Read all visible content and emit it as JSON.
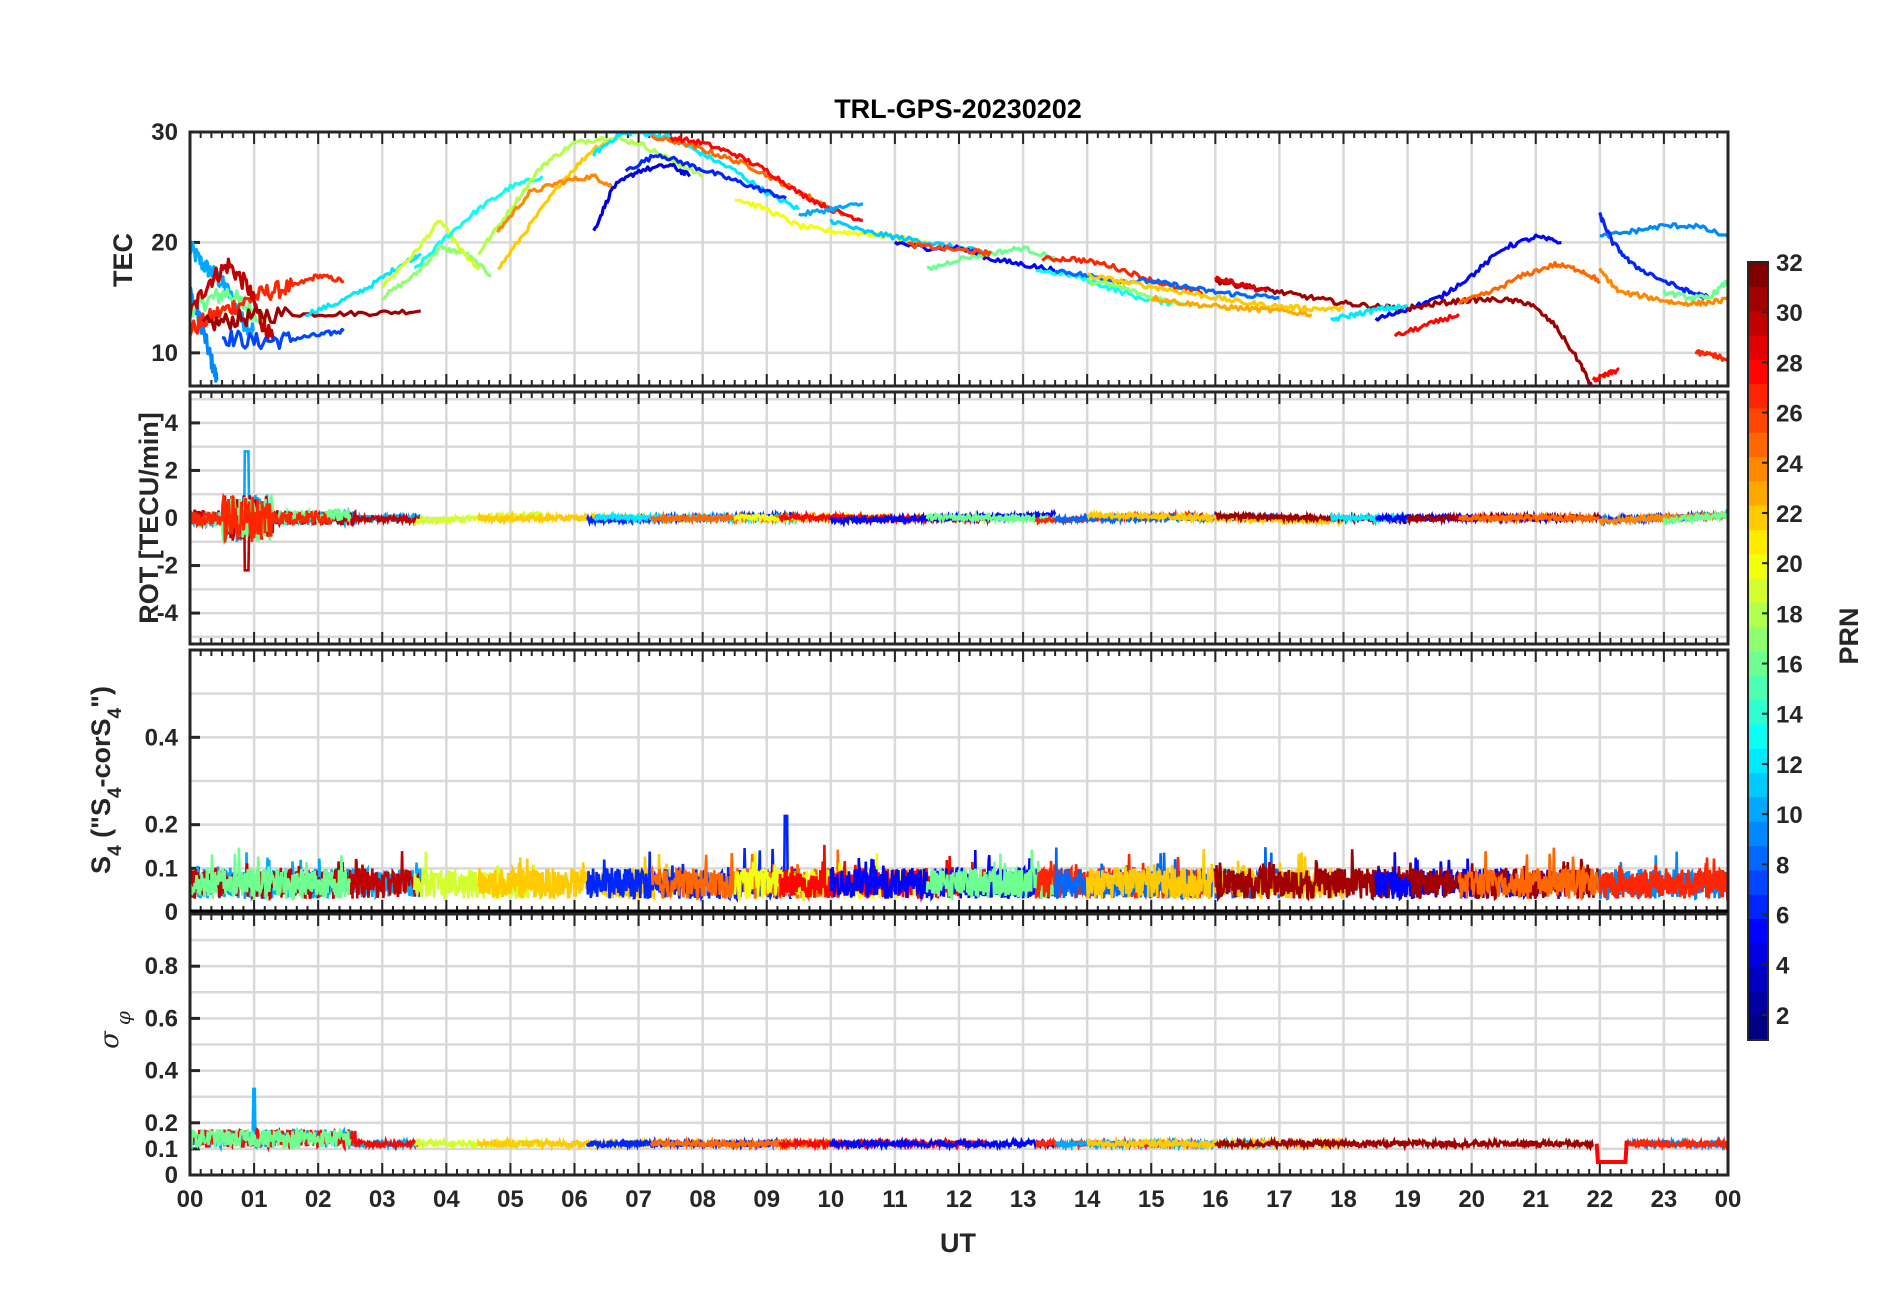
{
  "figure": {
    "title": "TRL-GPS-20230202",
    "xlabel": "UT",
    "colorbar_label": "PRN"
  },
  "chart_data": [
    {
      "id": "tec",
      "type": "line",
      "title": "TRL-GPS-20230202",
      "ylabel": "TEC",
      "xlim": [
        0,
        24
      ],
      "ylim": [
        7,
        30
      ],
      "yticks": [
        "10",
        "20",
        "30"
      ],
      "ytick_values": [
        10,
        20,
        30
      ],
      "grid": true,
      "series": [
        {
          "prn": 10,
          "x": [
            0,
            0.2,
            0.4,
            0.6,
            0.8,
            1.0
          ],
          "y": [
            19.5,
            18.0,
            17.0,
            15.5,
            13.0,
            12.0
          ]
        },
        {
          "prn": 9,
          "x": [
            0,
            0.15,
            0.3,
            0.42
          ],
          "y": [
            15.5,
            13.0,
            10.0,
            7.5
          ]
        },
        {
          "prn": 16,
          "x": [
            0,
            0.3,
            0.6,
            0.9,
            1.2
          ],
          "y": [
            14.0,
            14.8,
            15.5,
            14.0,
            13.0
          ]
        },
        {
          "prn": 27,
          "x": [
            0,
            0.4,
            0.8,
            1.2,
            1.6,
            2.0,
            2.4
          ],
          "y": [
            12.0,
            13.5,
            14.5,
            15.5,
            16.0,
            17.0,
            16.5
          ]
        },
        {
          "prn": 30,
          "x": [
            0,
            0.3,
            0.6,
            0.9,
            1.1,
            1.3
          ],
          "y": [
            13.5,
            16.5,
            18.0,
            16.0,
            13.0,
            11.0
          ]
        },
        {
          "prn": 31,
          "x": [
            0.2,
            0.7,
            1.2,
            2.0,
            2.8,
            3.6
          ],
          "y": [
            12.5,
            13.0,
            13.5,
            13.5,
            13.6,
            13.8
          ]
        },
        {
          "prn": 7,
          "x": [
            0.5,
            1.0,
            1.5,
            2.0,
            2.4
          ],
          "y": [
            11.5,
            11.0,
            11.2,
            11.6,
            12.0
          ]
        },
        {
          "prn": 12,
          "x": [
            1.8,
            2.3,
            2.8,
            3.3,
            3.6
          ],
          "y": [
            13.5,
            14.5,
            16.0,
            18.0,
            19.0
          ]
        },
        {
          "prn": 17,
          "x": [
            3.0,
            3.5,
            3.9,
            4.3,
            4.7
          ],
          "y": [
            15.0,
            17.0,
            19.5,
            19.0,
            17.0
          ]
        },
        {
          "prn": 19,
          "x": [
            3.0,
            3.5,
            3.9,
            4.2,
            4.5
          ],
          "y": [
            16.0,
            19.0,
            22.0,
            19.5,
            17.5
          ]
        },
        {
          "prn": 13,
          "x": [
            3.5,
            4.0,
            4.5,
            5.0,
            5.5
          ],
          "y": [
            17.5,
            20.5,
            23.0,
            25.0,
            26.0
          ]
        },
        {
          "prn": 22,
          "x": [
            4.8,
            5.3,
            5.8,
            6.3,
            6.8
          ],
          "y": [
            17.5,
            21.5,
            25.5,
            28.5,
            30.0
          ]
        },
        {
          "prn": 18,
          "x": [
            4.5,
            5.0,
            5.5,
            6.0,
            6.5,
            7.0,
            7.5,
            8.0
          ],
          "y": [
            19.0,
            23.0,
            27.0,
            29.0,
            29.5,
            29.0,
            27.5,
            26.0
          ]
        },
        {
          "prn": 24,
          "x": [
            4.8,
            5.3,
            5.8,
            6.3,
            6.6
          ],
          "y": [
            21.0,
            24.5,
            25.5,
            26.0,
            25.0
          ]
        },
        {
          "prn": 4,
          "x": [
            6.3,
            6.6,
            7.0,
            7.5,
            7.8
          ],
          "y": [
            21.0,
            25.0,
            26.5,
            27.0,
            26.0
          ]
        },
        {
          "prn": 12,
          "x": [
            6.3,
            6.7,
            7.0,
            7.5,
            8.0,
            8.5,
            9.0,
            9.5
          ],
          "y": [
            28.0,
            29.8,
            30.0,
            29.5,
            28.0,
            26.5,
            24.5,
            23.0
          ]
        },
        {
          "prn": 6,
          "x": [
            6.8,
            7.3,
            7.8,
            8.3,
            8.8,
            9.3
          ],
          "y": [
            26.5,
            28.0,
            27.0,
            26.0,
            25.0,
            24.0
          ]
        },
        {
          "prn": 25,
          "x": [
            7.2,
            7.7,
            8.2,
            8.7,
            9.2,
            9.7,
            10.2
          ],
          "y": [
            29.5,
            29.0,
            28.0,
            27.0,
            25.5,
            24.0,
            22.5
          ]
        },
        {
          "prn": 28,
          "x": [
            7.5,
            8.0,
            8.5,
            9.0,
            9.5,
            10.0,
            10.5
          ],
          "y": [
            29.5,
            29.0,
            28.0,
            26.5,
            24.5,
            23.0,
            22.0
          ]
        },
        {
          "prn": 20,
          "x": [
            8.5,
            9.0,
            9.5,
            10.0,
            10.5,
            11.0,
            11.5
          ],
          "y": [
            24.0,
            23.0,
            21.5,
            21.0,
            20.8,
            20.5,
            20.0
          ]
        },
        {
          "prn": 10,
          "x": [
            9.5,
            10.0,
            10.5
          ],
          "y": [
            22.5,
            23.0,
            23.5
          ]
        },
        {
          "prn": 11,
          "x": [
            10.0,
            10.5,
            11.0,
            11.5,
            12.0,
            12.5
          ],
          "y": [
            22.0,
            21.0,
            20.5,
            20.0,
            19.5,
            19.0
          ]
        },
        {
          "prn": 5,
          "x": [
            11.0,
            11.5,
            12.0,
            12.5,
            13.0,
            13.5
          ],
          "y": [
            20.0,
            19.5,
            19.5,
            18.5,
            18.0,
            17.5
          ]
        },
        {
          "prn": 16,
          "x": [
            11.5,
            12.0,
            12.5,
            13.0,
            13.5
          ],
          "y": [
            17.5,
            18.5,
            19.0,
            19.5,
            18.5
          ]
        },
        {
          "prn": 26,
          "x": [
            11.2,
            11.7,
            12.2,
            12.5
          ],
          "y": [
            19.8,
            19.5,
            19.2,
            19.0
          ]
        },
        {
          "prn": 27,
          "x": [
            13.3,
            13.8,
            14.3,
            14.8,
            15.3,
            15.8
          ],
          "y": [
            18.5,
            18.5,
            18.0,
            17.0,
            16.0,
            15.5
          ]
        },
        {
          "prn": 13,
          "x": [
            13.2,
            13.8,
            14.3,
            14.8,
            15.3
          ],
          "y": [
            17.5,
            17.0,
            16.0,
            15.0,
            14.5
          ]
        },
        {
          "prn": 8,
          "x": [
            13.5,
            14.0,
            14.5,
            15.0,
            15.5,
            16.0,
            16.5,
            17.0
          ],
          "y": [
            17.5,
            17.0,
            16.5,
            16.5,
            16.0,
            15.5,
            15.2,
            15.0
          ]
        },
        {
          "prn": 22,
          "x": [
            14.0,
            14.5,
            15.0,
            15.5,
            16.0,
            16.5,
            17.0,
            17.5,
            18.0
          ],
          "y": [
            17.0,
            16.5,
            16.0,
            15.5,
            15.0,
            14.5,
            14.2,
            14.0,
            14.0
          ]
        },
        {
          "prn": 17,
          "x": [
            14.0,
            14.5,
            15.0,
            15.5
          ],
          "y": [
            16.5,
            16.0,
            15.0,
            14.5
          ]
        },
        {
          "prn": 23,
          "x": [
            15.0,
            15.5,
            16.0,
            16.5,
            17.0,
            17.5
          ],
          "y": [
            15.0,
            14.5,
            14.2,
            14.0,
            13.8,
            13.5
          ]
        },
        {
          "prn": 31,
          "x": [
            16.0,
            16.5,
            17.0,
            17.5,
            18.0,
            18.5,
            19.0
          ],
          "y": [
            16.5,
            16.0,
            15.5,
            15.0,
            14.5,
            14.2,
            14.0
          ]
        },
        {
          "prn": 29,
          "x": [
            16.0,
            16.4,
            16.8
          ],
          "y": [
            16.8,
            16.2,
            15.5
          ]
        },
        {
          "prn": 12,
          "x": [
            17.8,
            18.2,
            18.6,
            19.0
          ],
          "y": [
            13.0,
            13.5,
            14.0,
            14.2
          ]
        },
        {
          "prn": 5,
          "x": [
            18.5,
            19.0,
            19.5,
            20.0,
            20.5,
            21.0,
            21.4
          ],
          "y": [
            13.0,
            14.0,
            15.0,
            17.0,
            19.5,
            20.5,
            20.0
          ]
        },
        {
          "prn": 31,
          "x": [
            19.0,
            19.5,
            20.0,
            20.5,
            20.9,
            21.3,
            21.7,
            21.9
          ],
          "y": [
            14.0,
            14.5,
            14.8,
            14.8,
            14.5,
            12.5,
            9.0,
            6.5
          ]
        },
        {
          "prn": 28,
          "x": [
            18.8,
            19.3,
            19.8
          ],
          "y": [
            11.5,
            12.5,
            13.5
          ]
        },
        {
          "prn": 25,
          "x": [
            19.8,
            20.3,
            20.8,
            21.3,
            21.7,
            22.0
          ],
          "y": [
            14.5,
            15.5,
            17.0,
            18.0,
            17.5,
            16.5
          ]
        },
        {
          "prn": 9,
          "x": [
            22.0,
            22.5,
            23.0,
            23.5,
            24.0
          ],
          "y": [
            20.5,
            21.0,
            21.5,
            21.5,
            20.5
          ]
        },
        {
          "prn": 6,
          "x": [
            22.0,
            22.2,
            22.5,
            23.0,
            23.4,
            23.7
          ],
          "y": [
            22.5,
            20.0,
            18.0,
            16.5,
            15.5,
            15.0
          ]
        },
        {
          "prn": 24,
          "x": [
            22.0,
            22.3,
            22.8,
            23.2,
            23.6,
            24.0
          ],
          "y": [
            17.5,
            15.5,
            15.0,
            14.5,
            14.5,
            14.8
          ]
        },
        {
          "prn": 16,
          "x": [
            23.0,
            23.4,
            23.7,
            24.0
          ],
          "y": [
            15.5,
            15.0,
            15.0,
            16.5
          ]
        },
        {
          "prn": 28,
          "x": [
            21.9,
            22.1,
            22.3
          ],
          "y": [
            7.5,
            8.0,
            8.5
          ]
        },
        {
          "prn": 27,
          "x": [
            23.5,
            23.8,
            24.0
          ],
          "y": [
            10.0,
            9.8,
            9.2
          ]
        }
      ]
    },
    {
      "id": "rot",
      "type": "line",
      "ylabel": "ROT [TECU/min]",
      "xlim": [
        0,
        24
      ],
      "ylim": [
        -5.3,
        5.3
      ],
      "yticks": [
        "-4",
        "-2",
        "0",
        "2",
        "4"
      ],
      "ytick_values": [
        -4,
        -2,
        0,
        2,
        4
      ],
      "grid": true,
      "description_values": {
        "baseline": 0,
        "peak_max": 2.8,
        "peak_min": -2.2,
        "peak_time": 0.9
      }
    },
    {
      "id": "s4",
      "type": "line",
      "ylabel": "S₄ (\"S₄-corS₄\")",
      "ylabel_parts": {
        "main": "S",
        "sub": "4",
        "rest": " (\"S",
        "sub2": "4",
        "rest2": "-corS",
        "sub3": "4",
        "end": "\")"
      },
      "xlim": [
        0,
        24
      ],
      "ylim": [
        0,
        0.6
      ],
      "yticks": [
        "0",
        "0.1",
        "0.2",
        "0.4"
      ],
      "ytick_values": [
        0,
        0.1,
        0.2,
        0.4
      ],
      "grid": true,
      "description_values": {
        "typical_max": 0.12,
        "peak": 0.22,
        "peak_time": 9.3
      }
    },
    {
      "id": "sigphi",
      "type": "line",
      "ylabel": "σ φ",
      "ylabel_parts": {
        "main": "σ",
        "sub": "φ"
      },
      "xlim": [
        0,
        24
      ],
      "ylim": [
        0,
        1.0
      ],
      "yticks": [
        "0",
        "0.1",
        "0.2",
        "0.4",
        "0.6",
        "0.8"
      ],
      "ytick_values": [
        0,
        0.1,
        0.2,
        0.4,
        0.6,
        0.8
      ],
      "xticks": [
        "00",
        "01",
        "02",
        "03",
        "04",
        "05",
        "06",
        "07",
        "08",
        "09",
        "10",
        "11",
        "12",
        "13",
        "14",
        "15",
        "16",
        "17",
        "18",
        "19",
        "20",
        "21",
        "22",
        "23",
        "00"
      ],
      "grid": true,
      "description_values": {
        "baseline": 0.12,
        "peak": 0.33,
        "peak_time": 1.0
      }
    },
    {
      "id": "colorbar",
      "type": "heatmap",
      "label": "PRN",
      "range": [
        1,
        32
      ],
      "ticks": [
        "2",
        "4",
        "6",
        "8",
        "10",
        "12",
        "14",
        "16",
        "18",
        "20",
        "22",
        "24",
        "26",
        "28",
        "30",
        "32"
      ],
      "tick_values": [
        2,
        4,
        6,
        8,
        10,
        12,
        14,
        16,
        18,
        20,
        22,
        24,
        26,
        28,
        30,
        32
      ],
      "colormap": "jet"
    }
  ]
}
